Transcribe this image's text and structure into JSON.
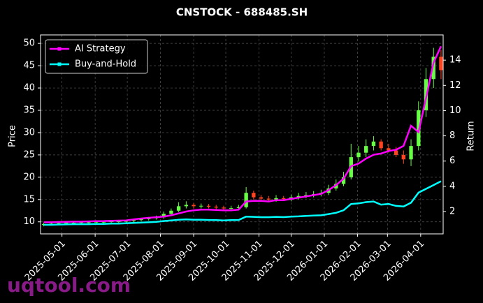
{
  "chart_data": {
    "type": "candlestick",
    "title": "CNSTOCK - 688485.SH",
    "watermark": "uqtool.com",
    "ylabel": "Price",
    "y2label": "Return",
    "grid": true,
    "legend": "upper left",
    "up_color": "#66ff44",
    "down_color": "#ff4422",
    "x": [
      "2025-04-14",
      "2025-04-21",
      "2025-04-28",
      "2025-05-05",
      "2025-05-12",
      "2025-05-19",
      "2025-05-26",
      "2025-06-02",
      "2025-06-09",
      "2025-06-16",
      "2025-06-23",
      "2025-06-30",
      "2025-07-07",
      "2025-07-14",
      "2025-07-21",
      "2025-07-28",
      "2025-08-04",
      "2025-08-11",
      "2025-08-18",
      "2025-08-25",
      "2025-09-01",
      "2025-09-08",
      "2025-09-15",
      "2025-09-22",
      "2025-09-29",
      "2025-10-06",
      "2025-10-13",
      "2025-10-20",
      "2025-10-27",
      "2025-11-03",
      "2025-11-10",
      "2025-11-17",
      "2025-11-24",
      "2025-12-01",
      "2025-12-08",
      "2025-12-15",
      "2025-12-22",
      "2025-12-29",
      "2026-01-05",
      "2026-01-12",
      "2026-01-19",
      "2026-01-26",
      "2026-02-02",
      "2026-02-09",
      "2026-02-16",
      "2026-02-23",
      "2026-03-02",
      "2026-03-09",
      "2026-03-16",
      "2026-03-23",
      "2026-03-30",
      "2026-04-06",
      "2026-04-13",
      "2026-04-20"
    ],
    "open": [
      9.3,
      9.5,
      9.6,
      9.7,
      9.8,
      9.8,
      9.9,
      9.9,
      10.0,
      10.0,
      10.1,
      10.1,
      10.2,
      10.4,
      10.6,
      10.8,
      11.0,
      11.8,
      12.5,
      13.5,
      13.8,
      13.5,
      13.6,
      13.4,
      13.2,
      13.0,
      13.1,
      13.3,
      16.5,
      15.5,
      15.2,
      15.0,
      15.3,
      15.1,
      15.5,
      15.8,
      16.0,
      16.2,
      16.5,
      17.5,
      18.5,
      20.0,
      24.5,
      25.5,
      27.0,
      28.0,
      26.5,
      26.0,
      25.0,
      24.0,
      27.0,
      35.0,
      42.0,
      47.0
    ],
    "high": [
      9.8,
      9.9,
      10.0,
      10.1,
      10.1,
      10.2,
      10.2,
      10.3,
      10.3,
      10.4,
      10.4,
      10.5,
      10.7,
      10.9,
      11.1,
      11.4,
      12.3,
      13.0,
      14.4,
      14.6,
      14.2,
      14.1,
      14.0,
      13.8,
      13.6,
      13.6,
      13.8,
      17.8,
      17.0,
      16.0,
      15.8,
      16.0,
      15.8,
      16.1,
      16.5,
      16.7,
      16.9,
      17.2,
      18.3,
      19.5,
      21.2,
      27.5,
      27.0,
      28.5,
      29.2,
      28.5,
      27.5,
      26.8,
      26.0,
      28.5,
      37.0,
      44.5,
      49.0,
      48.5
    ],
    "low": [
      9.0,
      9.2,
      9.3,
      9.4,
      9.5,
      9.5,
      9.6,
      9.6,
      9.7,
      9.7,
      9.8,
      9.8,
      9.9,
      10.1,
      10.3,
      10.5,
      10.7,
      11.5,
      12.2,
      13.0,
      13.0,
      13.0,
      13.0,
      12.8,
      12.6,
      12.5,
      12.7,
      13.0,
      15.0,
      14.9,
      14.6,
      14.5,
      14.7,
      14.6,
      15.0,
      15.3,
      15.5,
      15.7,
      16.0,
      17.0,
      18.0,
      19.5,
      23.5,
      24.5,
      26.0,
      26.0,
      25.5,
      24.5,
      23.0,
      22.5,
      26.0,
      33.5,
      40.0,
      42.0
    ],
    "close": [
      9.5,
      9.6,
      9.7,
      9.8,
      9.8,
      9.9,
      9.9,
      10.0,
      10.0,
      10.1,
      10.1,
      10.2,
      10.4,
      10.6,
      10.8,
      11.0,
      11.8,
      12.5,
      13.5,
      13.8,
      13.5,
      13.6,
      13.4,
      13.2,
      13.0,
      13.1,
      13.3,
      16.5,
      15.5,
      15.2,
      15.0,
      15.3,
      15.1,
      15.5,
      15.8,
      16.0,
      16.2,
      16.5,
      17.5,
      18.5,
      20.0,
      24.5,
      25.5,
      27.0,
      28.0,
      26.5,
      26.0,
      25.0,
      24.0,
      27.0,
      35.0,
      42.0,
      47.0,
      44.0
    ],
    "series": [
      {
        "name": "AI Strategy",
        "color": "#ff00ff",
        "axis": "y2",
        "values": [
          1.15,
          1.15,
          1.17,
          1.18,
          1.2,
          1.2,
          1.22,
          1.24,
          1.25,
          1.27,
          1.28,
          1.3,
          1.38,
          1.45,
          1.5,
          1.55,
          1.6,
          1.7,
          1.85,
          2.0,
          2.1,
          2.15,
          2.15,
          2.12,
          2.1,
          2.1,
          2.15,
          2.8,
          2.85,
          2.85,
          2.8,
          2.9,
          2.9,
          3.0,
          3.1,
          3.2,
          3.3,
          3.4,
          3.7,
          4.1,
          4.6,
          5.6,
          5.8,
          6.2,
          6.5,
          6.6,
          6.8,
          6.9,
          7.2,
          8.8,
          8.3,
          11.0,
          13.8,
          15.1
        ]
      },
      {
        "name": "Buy-and-Hold",
        "color": "#00ffff",
        "axis": "y2",
        "values": [
          0.95,
          0.95,
          0.97,
          0.98,
          1.0,
          1.0,
          1.0,
          1.02,
          1.02,
          1.05,
          1.05,
          1.07,
          1.1,
          1.12,
          1.15,
          1.18,
          1.25,
          1.3,
          1.35,
          1.38,
          1.35,
          1.35,
          1.33,
          1.32,
          1.3,
          1.32,
          1.33,
          1.6,
          1.58,
          1.55,
          1.55,
          1.58,
          1.56,
          1.6,
          1.62,
          1.65,
          1.68,
          1.7,
          1.8,
          1.9,
          2.1,
          2.6,
          2.65,
          2.75,
          2.8,
          2.55,
          2.6,
          2.45,
          2.4,
          2.7,
          3.5,
          3.8,
          4.1,
          4.4
        ]
      }
    ],
    "xlim": [
      "2025-04-11",
      "2026-04-22"
    ],
    "xticks": [
      "2025-05-01",
      "2025-06-01",
      "2025-07-01",
      "2025-08-01",
      "2025-09-01",
      "2025-10-01",
      "2025-11-01",
      "2025-12-01",
      "2026-01-01",
      "2026-02-01",
      "2026-03-01",
      "2026-04-01"
    ],
    "ylim": [
      7.3,
      51.9
    ],
    "yticks": [
      10,
      15,
      20,
      25,
      30,
      35,
      40,
      45,
      50
    ],
    "y2lim": [
      0.23,
      16.0
    ],
    "y2ticks": [
      2,
      4,
      6,
      8,
      10,
      12,
      14
    ]
  }
}
